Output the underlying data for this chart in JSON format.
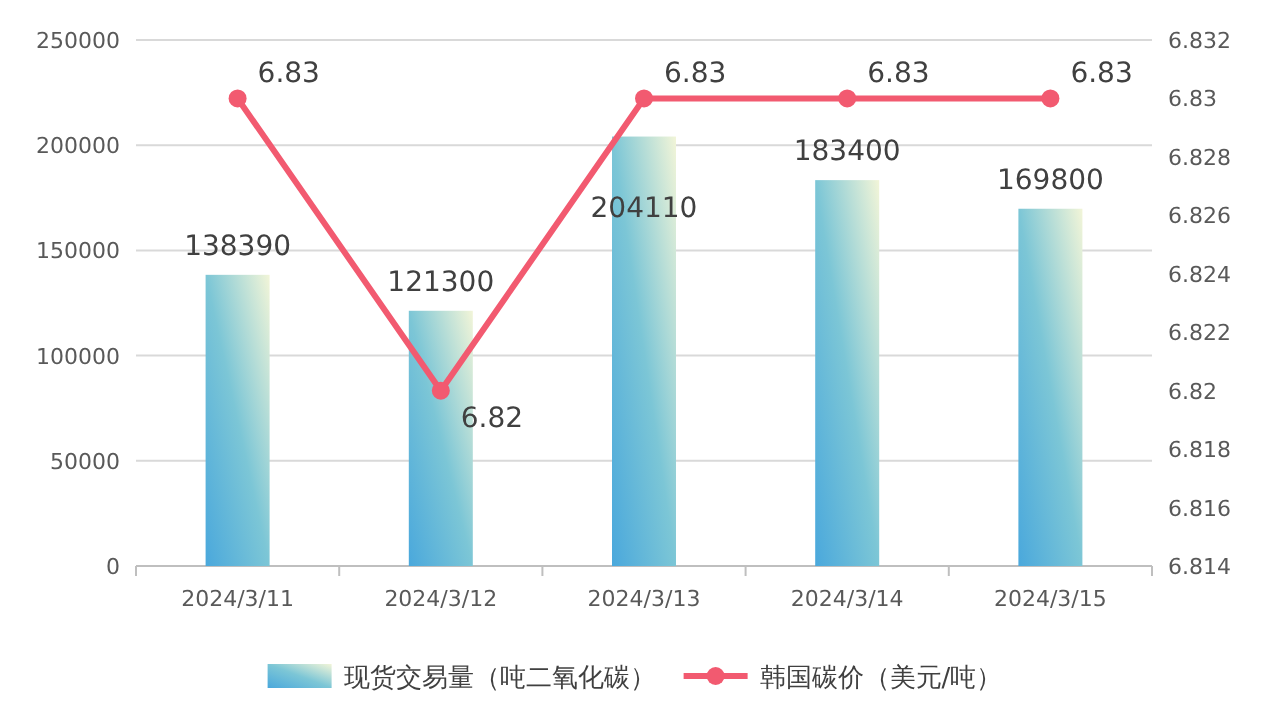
{
  "chart_data": {
    "type": "bar",
    "categories": [
      "2024/3/11",
      "2024/3/12",
      "2024/3/13",
      "2024/3/14",
      "2024/3/15"
    ],
    "series": [
      {
        "name": "现货交易量（吨二氧化碳）",
        "color": "#7cc6d6",
        "values": [
          138390,
          121300,
          204110,
          183400,
          169800
        ]
      },
      {
        "name": "韩国碳价（美元/吨）",
        "type": "line",
        "axis": "y2",
        "color": "#f25a70",
        "values": [
          6.83,
          6.82,
          6.83,
          6.83,
          6.83
        ]
      }
    ],
    "ylim": [
      0,
      250000
    ],
    "yticks": [
      0,
      50000,
      100000,
      150000,
      200000,
      250000
    ],
    "y2lim": [
      6.814,
      6.832
    ],
    "y2ticks": [
      6.814,
      6.816,
      6.818,
      6.82,
      6.822,
      6.824,
      6.826,
      6.828,
      6.83,
      6.832
    ],
    "grid": "y",
    "legend": "bottom",
    "data_labels": true,
    "marker": "circle"
  }
}
